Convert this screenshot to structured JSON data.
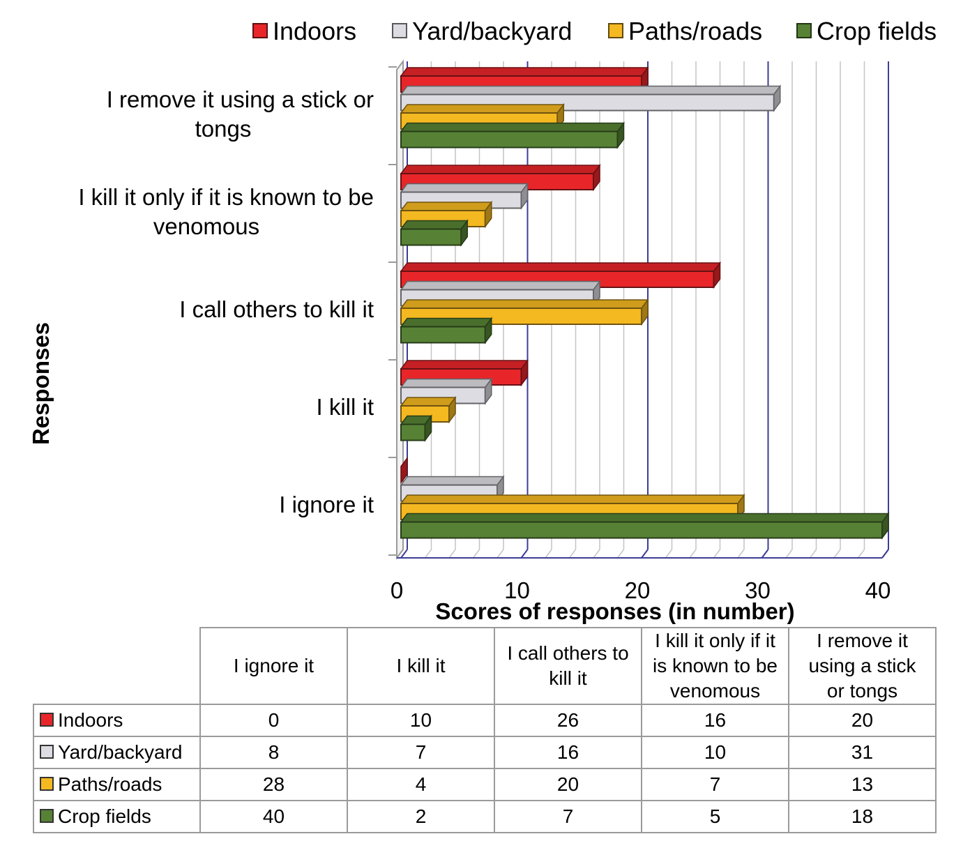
{
  "chart_data": {
    "type": "bar",
    "orientation": "horizontal",
    "categories": [
      "I ignore it",
      "I kill it",
      "I call others to kill it",
      "I kill it only if it is known to be venomous",
      "I remove it using a stick or tongs"
    ],
    "category_labels": [
      [
        "I ignore it"
      ],
      [
        "I kill it"
      ],
      [
        "I call others to kill it"
      ],
      [
        "I kill it only if it is known to be",
        "venomous"
      ],
      [
        "I remove it using a stick or",
        "tongs"
      ]
    ],
    "series": [
      {
        "name": "Indoors",
        "color": "#e8262a",
        "values": [
          0,
          10,
          26,
          16,
          20
        ]
      },
      {
        "name": "Yard/backyard",
        "color": "#dcdce2",
        "values": [
          8,
          7,
          16,
          10,
          31
        ]
      },
      {
        "name": "Paths/roads",
        "color": "#f4b821",
        "values": [
          28,
          4,
          20,
          7,
          13
        ]
      },
      {
        "name": "Crop fields",
        "color": "#578235",
        "values": [
          40,
          2,
          7,
          5,
          18
        ]
      }
    ],
    "xlabel": "Scores of responses (in number)",
    "ylabel": "Responses",
    "xlim": [
      0,
      40
    ],
    "x_ticks": [
      0,
      10,
      20,
      30,
      40
    ],
    "grid": true,
    "legend_position": "top",
    "data_table": {
      "column_headers": [
        [
          "I ignore it"
        ],
        [
          "I kill it"
        ],
        [
          "I call others to",
          "kill it"
        ],
        [
          "I kill it only if it",
          "is known to be",
          "venomous"
        ],
        [
          "I remove it",
          "using a stick",
          "or tongs"
        ]
      ]
    }
  }
}
